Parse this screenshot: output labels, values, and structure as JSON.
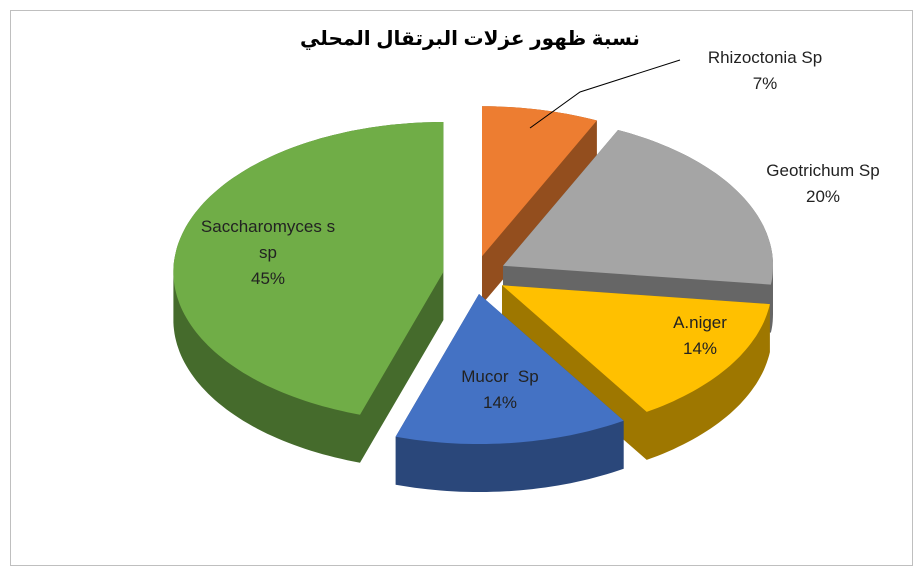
{
  "chart_data": {
    "type": "pie",
    "title": "نسبة ظهور عزلات البرتقال المحلي",
    "categories": [
      "Rhizoctonia Sp",
      "Geotrichum Sp",
      "A.niger",
      "Mucor  Sp",
      "Saccharomyces s sp"
    ],
    "values": [
      7,
      20,
      14,
      14,
      45
    ],
    "value_labels": [
      "7%",
      "20%",
      "14%",
      "14%",
      "45%"
    ],
    "colors": [
      "#ed7d31",
      "#a5a5a5",
      "#ffc000",
      "#4472c4",
      "#70ad47"
    ]
  }
}
